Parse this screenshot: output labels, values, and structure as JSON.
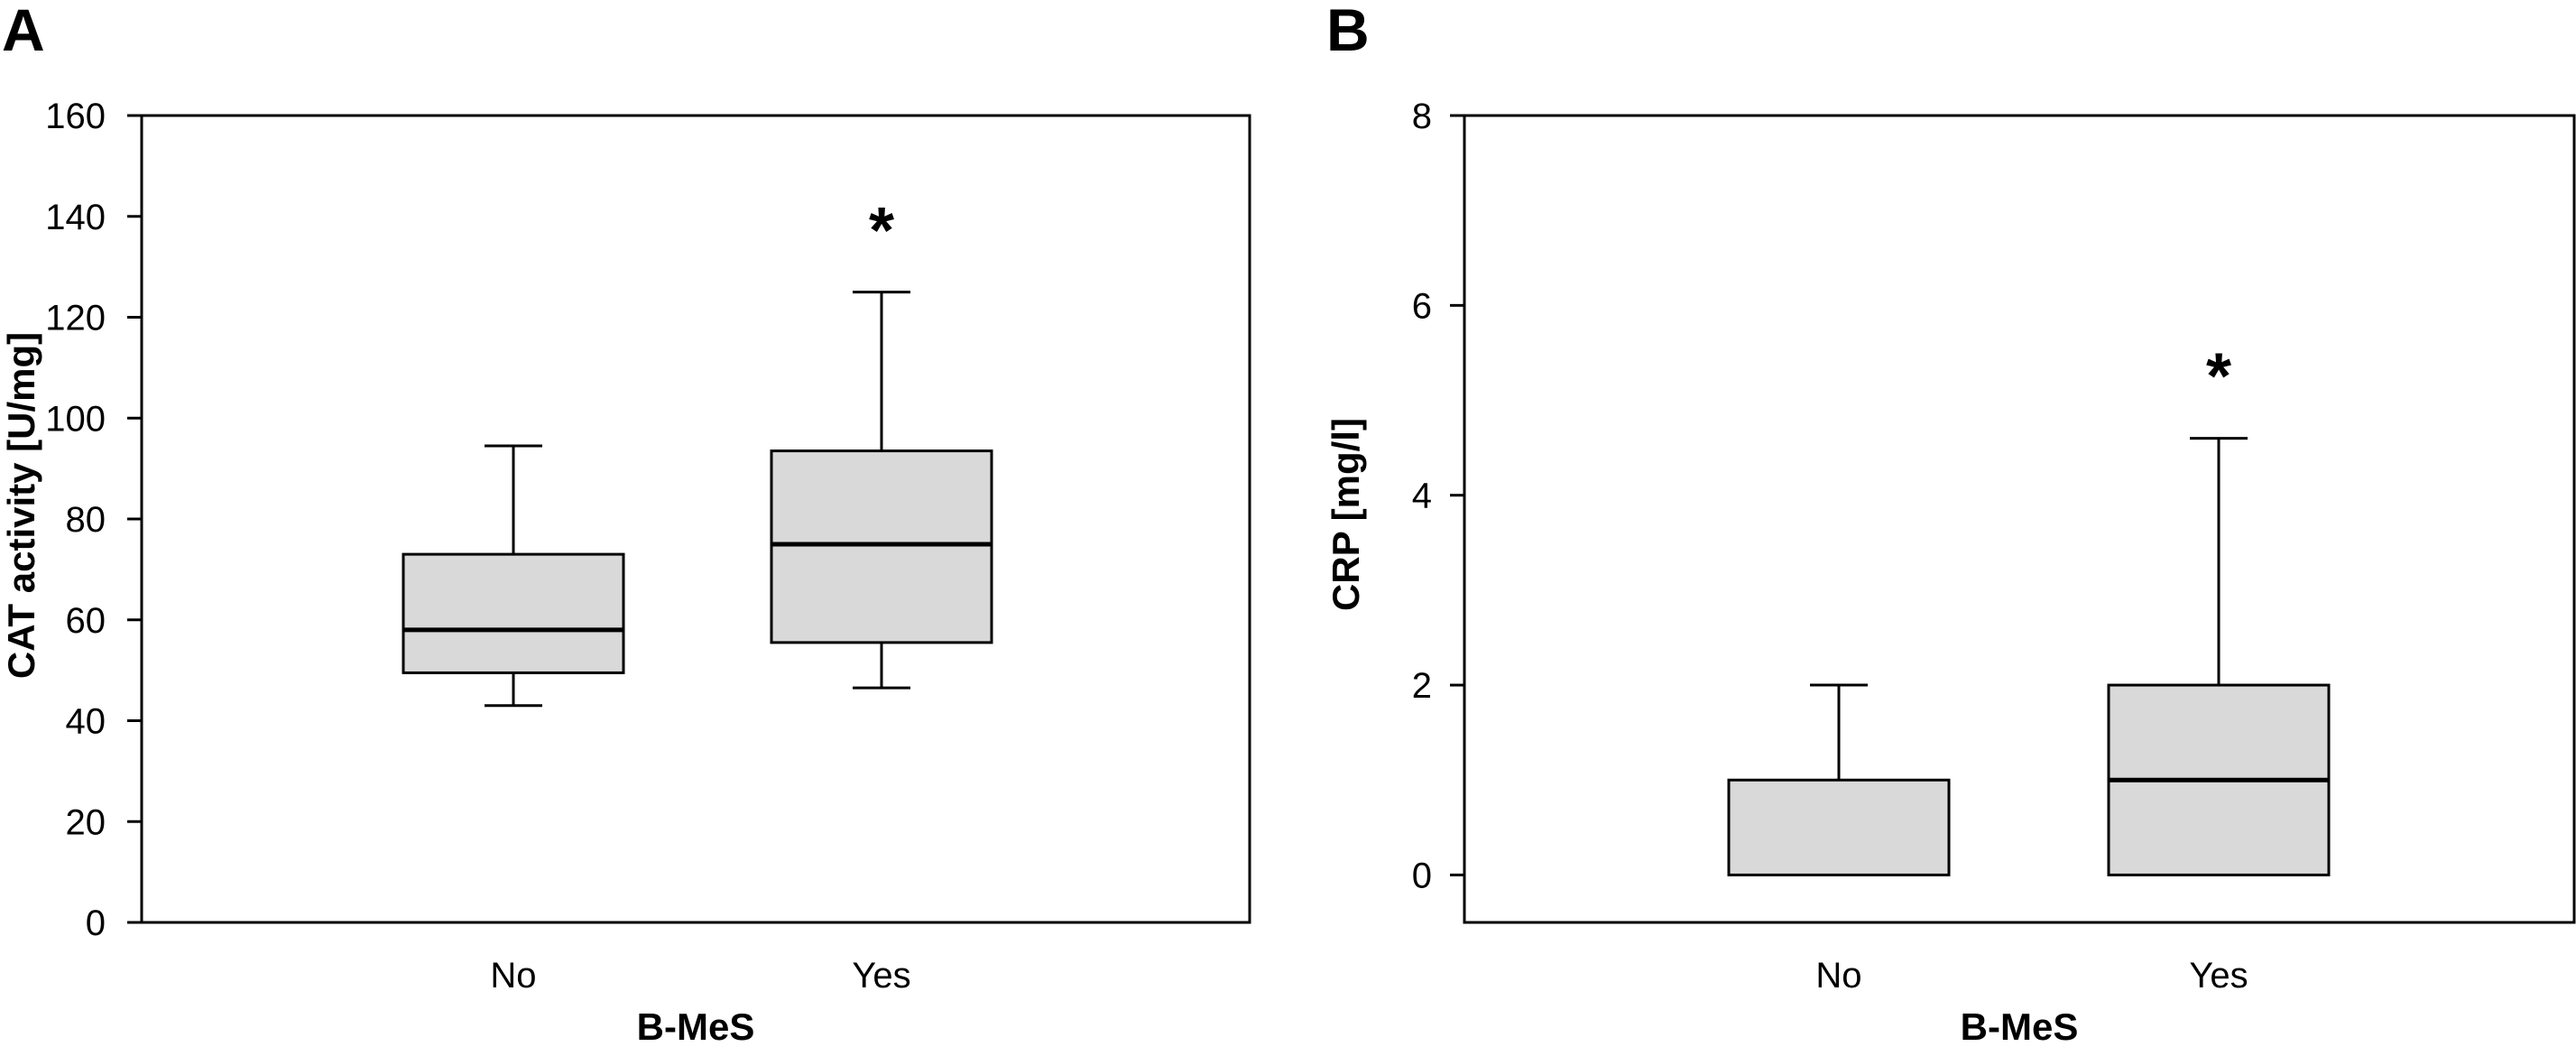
{
  "figure": {
    "panels": [
      "A",
      "B"
    ]
  },
  "chart_data": [
    {
      "panel": "A",
      "type": "box",
      "xlabel": "B-MeS",
      "ylabel": "CAT activity [U/mg]",
      "ylim": [
        0,
        160
      ],
      "yticks": [
        0,
        20,
        40,
        60,
        80,
        100,
        120,
        140,
        160
      ],
      "grid": false,
      "categories": [
        "No",
        "Yes"
      ],
      "boxes": [
        {
          "category": "No",
          "whisker_low": 43,
          "q1": 49.5,
          "median": 58,
          "q3": 73,
          "whisker_high": 94.5
        },
        {
          "category": "Yes",
          "whisker_low": 46.5,
          "q1": 55.5,
          "median": 75,
          "q3": 93.5,
          "whisker_high": 125
        }
      ],
      "annotations": [
        {
          "category": "Yes",
          "text": "*",
          "y": 140
        }
      ],
      "box_fill": "#d9d9d9",
      "line_color": "#000000"
    },
    {
      "panel": "B",
      "type": "box",
      "xlabel": "B-MeS",
      "ylabel": "CRP [mg/l]",
      "ylim": [
        -0.5,
        8
      ],
      "yticks": [
        0,
        2,
        4,
        6,
        8
      ],
      "grid": false,
      "categories": [
        "No",
        "Yes"
      ],
      "boxes": [
        {
          "category": "No",
          "whisker_low": 0,
          "q1": 0,
          "median": 0,
          "q3": 1,
          "whisker_high": 2
        },
        {
          "category": "Yes",
          "whisker_low": 0,
          "q1": 0,
          "median": 1,
          "q3": 2,
          "whisker_high": 4.6
        }
      ],
      "annotations": [
        {
          "category": "Yes",
          "text": "*",
          "y": 5.4
        }
      ],
      "box_fill": "#d9d9d9",
      "line_color": "#000000"
    }
  ]
}
